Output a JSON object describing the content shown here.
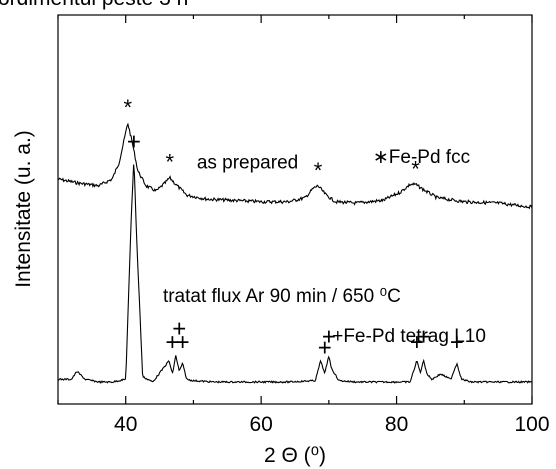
{
  "header": {
    "cut_title": "ordimentul peste 3 h"
  },
  "chart_data": {
    "type": "line",
    "title": "",
    "xlabel": "2 Θ (⁰)",
    "ylabel": "Intensitate (u. a.)",
    "xlim": [
      30,
      100
    ],
    "xticks": [
      40,
      60,
      80,
      100
    ],
    "y_ticks_labeled": false,
    "grid": false,
    "series": [
      {
        "name": "as prepared",
        "x": [
          30,
          33,
          36,
          38,
          39,
          39.8,
          40.3,
          40.9,
          41.8,
          43,
          44.5,
          45.8,
          46.5,
          47.4,
          49,
          52,
          56,
          60,
          64,
          66.5,
          67.7,
          68.4,
          69.6,
          71,
          74,
          78,
          80.5,
          82,
          82.8,
          84,
          86,
          90,
          95,
          100
        ],
        "y": [
          0.76,
          0.745,
          0.735,
          0.76,
          0.82,
          0.91,
          0.97,
          0.905,
          0.79,
          0.735,
          0.715,
          0.745,
          0.765,
          0.74,
          0.7,
          0.685,
          0.68,
          0.675,
          0.675,
          0.69,
          0.725,
          0.735,
          0.7,
          0.675,
          0.67,
          0.68,
          0.71,
          0.74,
          0.74,
          0.72,
          0.69,
          0.675,
          0.67,
          0.655
        ]
      },
      {
        "name": "tratat flux Ar 90 min / 650 ⁰C",
        "x": [
          30,
          32,
          32.8,
          34,
          36,
          38,
          40,
          40.8,
          41.2,
          41.6,
          42.5,
          44,
          46.4,
          46.9,
          47.4,
          47.9,
          48.4,
          49,
          50,
          53,
          56,
          60,
          64,
          68,
          68.8,
          69.4,
          70,
          70.4,
          71.5,
          74,
          78,
          82,
          83,
          83.5,
          84,
          84.5,
          85.2,
          86.5,
          88,
          88.9,
          89.6,
          91,
          95,
          100
        ],
        "y": [
          0.01,
          0.01,
          0.04,
          0.01,
          0.0,
          0.0,
          0.01,
          0.6,
          0.84,
          0.55,
          0.02,
          0.0,
          0.08,
          0.03,
          0.1,
          0.04,
          0.07,
          0.01,
          0.005,
          0.0,
          0.0,
          0.0,
          0.0,
          0.005,
          0.08,
          0.03,
          0.1,
          0.05,
          0.005,
          0.0,
          0.0,
          0.0,
          0.08,
          0.035,
          0.08,
          0.03,
          0.01,
          0.03,
          0.01,
          0.07,
          0.01,
          0.0,
          0.0,
          0.0
        ]
      }
    ],
    "markers": [
      {
        "symbol": "*",
        "x": 40.3,
        "y": 0.97,
        "series": "as prepared"
      },
      {
        "symbol": "*",
        "x": 46.5,
        "y": 0.765,
        "series": "as prepared"
      },
      {
        "symbol": "*",
        "x": 68.4,
        "y": 0.735,
        "series": "as prepared"
      },
      {
        "symbol": "*",
        "x": 82.8,
        "y": 0.74,
        "series": "as prepared"
      },
      {
        "symbol": "+",
        "x": 41.2,
        "y": 0.84,
        "series": "tratat flux Ar 90 min / 650 ⁰C"
      },
      {
        "symbol": "+",
        "x": 46.9,
        "y": 0.09,
        "series": "tratat flux Ar 90 min / 650 ⁰C"
      },
      {
        "symbol": "+",
        "x": 47.9,
        "y": 0.14,
        "series": "tratat flux Ar 90 min / 650 ⁰C"
      },
      {
        "symbol": "+",
        "x": 48.4,
        "y": 0.09,
        "series": "tratat flux Ar 90 min / 650 ⁰C"
      },
      {
        "symbol": "+",
        "x": 69.4,
        "y": 0.07,
        "series": "tratat flux Ar 90 min / 650 ⁰C"
      },
      {
        "symbol": "+",
        "x": 70.0,
        "y": 0.11,
        "series": "tratat flux Ar 90 min / 650 ⁰C"
      },
      {
        "symbol": "+",
        "x": 83.0,
        "y": 0.09,
        "series": "tratat flux Ar 90 min / 650 ⁰C"
      },
      {
        "symbol": "+",
        "x": 84.0,
        "y": 0.11,
        "series": "tratat flux Ar 90 min / 650 ⁰C"
      },
      {
        "symbol": "+",
        "x": 88.9,
        "y": 0.09,
        "series": "tratat flux Ar 90 min / 650 ⁰C"
      }
    ],
    "annotations": [
      {
        "text": "as prepared",
        "x": 50.5,
        "y": 0.8
      },
      {
        "text": "∗Fe-Pd fcc",
        "x": 76.5,
        "y": 0.82
      },
      {
        "text": "tratat flux Ar 90 min / 650 ⁰C",
        "x": 45.5,
        "y": 0.3
      },
      {
        "text": "+Fe-Pd tetrag L10",
        "x": 70.5,
        "y": 0.15
      }
    ],
    "colors": {
      "line": "#000000",
      "background": "#ffffff"
    }
  }
}
